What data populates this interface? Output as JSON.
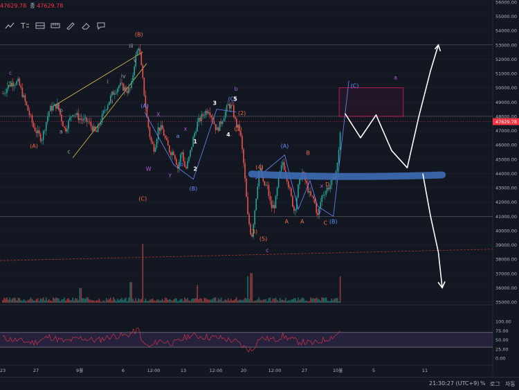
{
  "readout": {
    "price": "47629.78",
    "prefix": "종",
    "close": "47629.78"
  },
  "toolbar": {
    "icons": [
      "trend-line-icon",
      "text-tool-icon",
      "pattern-icon",
      "measure-icon",
      "brush-icon",
      "eraser-icon",
      "note-icon"
    ]
  },
  "chart_data": {
    "type": "candlestick",
    "price_axis": {
      "ticks": [
        "56000.00",
        "55000.00",
        "54000.00",
        "53000.00",
        "52000.00",
        "51000.00",
        "50000.00",
        "49000.00",
        "48000.00",
        "47000.00",
        "46000.00",
        "45000.00",
        "44000.00",
        "43000.00",
        "42000.00",
        "41000.00",
        "40000.00",
        "39000.00",
        "38000.00",
        "37000.00",
        "36000.00",
        "35000.00"
      ],
      "ylim": [
        35000,
        56000
      ],
      "last_price_label": "47629.78",
      "last_price_color": "#f23645"
    },
    "rsi_axis": {
      "ticks": [
        "100.00",
        "75.00",
        "50.00",
        "25.00",
        "0.00"
      ],
      "ylim": [
        0,
        100
      ],
      "band": [
        30,
        70
      ]
    },
    "time_axis": {
      "ticks": [
        "23",
        "27",
        "9월",
        "6",
        "12:00",
        "13",
        "12:00",
        "20",
        "12:00",
        "27",
        "10월",
        "5",
        "11"
      ]
    },
    "price_path": [
      [
        0,
        49600
      ],
      [
        2,
        50300
      ],
      [
        4,
        50400
      ],
      [
        6,
        48800
      ],
      [
        8,
        47200
      ],
      [
        10,
        46400
      ],
      [
        12,
        48500
      ],
      [
        14,
        48800
      ],
      [
        16,
        47000
      ],
      [
        18,
        48300
      ],
      [
        20,
        47800
      ],
      [
        22,
        47600
      ],
      [
        24,
        46800
      ],
      [
        26,
        48300
      ],
      [
        28,
        49500
      ],
      [
        30,
        50200
      ],
      [
        32,
        49800
      ],
      [
        33,
        50000
      ],
      [
        34,
        52000
      ],
      [
        35,
        53000
      ],
      [
        36,
        50500
      ],
      [
        37,
        48000
      ],
      [
        38,
        46300
      ],
      [
        39,
        45700
      ],
      [
        40,
        47200
      ],
      [
        41,
        47100
      ],
      [
        42,
        46200
      ],
      [
        43,
        45500
      ],
      [
        44,
        45500
      ],
      [
        45,
        44400
      ],
      [
        46,
        45600
      ],
      [
        47,
        44200
      ],
      [
        48,
        45200
      ],
      [
        49,
        46500
      ],
      [
        50,
        47500
      ],
      [
        52,
        48300
      ],
      [
        53,
        48500
      ],
      [
        54,
        47800
      ],
      [
        55,
        47000
      ],
      [
        56,
        47500
      ],
      [
        58,
        48800
      ],
      [
        59,
        48600
      ],
      [
        60,
        47400
      ],
      [
        61,
        47000
      ],
      [
        62,
        44500
      ],
      [
        63,
        41000
      ],
      [
        64,
        39500
      ],
      [
        65,
        42000
      ],
      [
        66,
        44500
      ],
      [
        67,
        43200
      ],
      [
        68,
        43100
      ],
      [
        69,
        41600
      ],
      [
        70,
        41800
      ],
      [
        71,
        43700
      ],
      [
        72,
        44800
      ],
      [
        73,
        43800
      ],
      [
        74,
        42500
      ],
      [
        75,
        41300
      ],
      [
        76,
        43100
      ],
      [
        77,
        44100
      ],
      [
        78,
        43300
      ],
      [
        79,
        42400
      ],
      [
        80,
        42200
      ],
      [
        81,
        41000
      ],
      [
        82,
        42400
      ],
      [
        83,
        42800
      ],
      [
        84,
        43100
      ],
      [
        85,
        43500
      ],
      [
        86,
        44500
      ],
      [
        87,
        47630
      ]
    ],
    "volume_spikes": [
      [
        36,
        1.0
      ],
      [
        33,
        0.35
      ],
      [
        63,
        0.45
      ],
      [
        64,
        0.5
      ],
      [
        87,
        0.45
      ],
      [
        50,
        0.3
      ],
      [
        20,
        0.25
      ]
    ],
    "rsi_path": [
      [
        0,
        55
      ],
      [
        4,
        48
      ],
      [
        8,
        42
      ],
      [
        12,
        58
      ],
      [
        16,
        45
      ],
      [
        20,
        55
      ],
      [
        24,
        48
      ],
      [
        28,
        60
      ],
      [
        32,
        62
      ],
      [
        35,
        78
      ],
      [
        36,
        40
      ],
      [
        38,
        30
      ],
      [
        40,
        48
      ],
      [
        44,
        40
      ],
      [
        48,
        62
      ],
      [
        52,
        58
      ],
      [
        56,
        55
      ],
      [
        60,
        45
      ],
      [
        62,
        30
      ],
      [
        64,
        20
      ],
      [
        66,
        55
      ],
      [
        70,
        50
      ],
      [
        72,
        60
      ],
      [
        76,
        45
      ],
      [
        80,
        40
      ],
      [
        84,
        55
      ],
      [
        86,
        65
      ],
      [
        87,
        82
      ]
    ],
    "wave_labels": [
      {
        "text": "c",
        "color": "#b05ad6",
        "x": 2,
        "price": 50900
      },
      {
        "text": "(5)",
        "color": "#3bb273",
        "x": 2,
        "price": 50150
      },
      {
        "text": "(A)",
        "color": "#f36f45",
        "x": 8,
        "price": 45800
      },
      {
        "text": "b",
        "color": "#9aa0aa",
        "x": 15,
        "price": 48300
      },
      {
        "text": "a",
        "color": "#9aa0aa",
        "x": 15,
        "price": 46800
      },
      {
        "text": "c",
        "color": "#9aa0aa",
        "x": 17,
        "price": 45400
      },
      {
        "text": "(B)",
        "color": "#f36f45",
        "x": 35,
        "price": 53600
      },
      {
        "text": "iii",
        "color": "#9aa0aa",
        "x": 33,
        "price": 52800
      },
      {
        "text": "v",
        "color": "#9aa0aa",
        "x": 34,
        "price": 51800
      },
      {
        "text": "iv",
        "color": "#9aa0aa",
        "x": 31,
        "price": 50700
      },
      {
        "text": "ii",
        "color": "#9aa0aa",
        "x": 28,
        "price": 48900
      },
      {
        "text": "i",
        "color": "#9aa0aa",
        "x": 27,
        "price": 50300
      },
      {
        "text": "(A)",
        "color": "#6a8cff",
        "x": 36.5,
        "price": 48600
      },
      {
        "text": "X",
        "color": "#b05ad6",
        "x": 40,
        "price": 48000
      },
      {
        "text": "W",
        "color": "#b05ad6",
        "x": 37.5,
        "price": 44200
      },
      {
        "text": "(C)",
        "color": "#f36f45",
        "x": 36,
        "price": 42100
      },
      {
        "text": "a",
        "color": "#6a8cff",
        "x": 45,
        "price": 46500
      },
      {
        "text": "b",
        "color": "#6a8cff",
        "x": 46,
        "price": 44500
      },
      {
        "text": "Y",
        "color": "#b05ad6",
        "x": 43,
        "price": 43700
      },
      {
        "text": "x",
        "color": "#b05ad6",
        "x": 47,
        "price": 47000
      },
      {
        "text": "1",
        "color": "#ffffff",
        "x": 49.5,
        "price": 46100
      },
      {
        "text": "2",
        "color": "#ffffff",
        "x": 49.5,
        "price": 44200
      },
      {
        "text": "(B)",
        "color": "#6a8cff",
        "x": 49,
        "price": 42800
      },
      {
        "text": "3",
        "color": "#ffffff",
        "x": 54.5,
        "price": 48800
      },
      {
        "text": "4",
        "color": "#ffffff",
        "x": 58,
        "price": 46600
      },
      {
        "text": "b",
        "color": "#b05ad6",
        "x": 60,
        "price": 49800
      },
      {
        "text": "(C)",
        "color": "#6a8cff",
        "x": 59,
        "price": 49100
      },
      {
        "text": "5",
        "color": "#ffffff",
        "x": 59.8,
        "price": 49100
      },
      {
        "text": "(2)",
        "color": "#f36f45",
        "x": 61.5,
        "price": 48100
      },
      {
        "text": "(1)",
        "color": "#f36f45",
        "x": 60.5,
        "price": 47000
      },
      {
        "text": "(4)",
        "color": "#f36f45",
        "x": 66,
        "price": 44300
      },
      {
        "text": "(3)",
        "color": "#f36f45",
        "x": 64.5,
        "price": 39800
      },
      {
        "text": "(5)",
        "color": "#f36f45",
        "x": 67,
        "price": 39300
      },
      {
        "text": "c",
        "color": "#b05ad6",
        "x": 68,
        "price": 38500
      },
      {
        "text": "(A)",
        "color": "#6a8cff",
        "x": 72.5,
        "price": 45800
      },
      {
        "text": "B",
        "color": "#f36f45",
        "x": 78.5,
        "price": 45300
      },
      {
        "text": "A",
        "color": "#f36f45",
        "x": 73,
        "price": 40500
      },
      {
        "text": "A",
        "color": "#f36f45",
        "x": 77,
        "price": 40500
      },
      {
        "text": "C",
        "color": "#f36f45",
        "x": 83,
        "price": 40400
      },
      {
        "text": "D",
        "color": "#f36f45",
        "x": 83.5,
        "price": 43100
      },
      {
        "text": "x",
        "color": "#b05ad6",
        "x": 82,
        "price": 43000
      },
      {
        "text": "y",
        "color": "#b05ad6",
        "x": 81.5,
        "price": 41200
      },
      {
        "text": "(B)",
        "color": "#6a8cff",
        "x": 85,
        "price": 40500
      },
      {
        "text": "(C)",
        "color": "#6a8cff",
        "x": 90.5,
        "price": 50000
      },
      {
        "text": "a",
        "color": "#b05ad6",
        "x": 101,
        "price": 50600
      }
    ],
    "support_band_price": 43900,
    "target_box": {
      "price_top": 50000,
      "price_bottom": 48000,
      "x_start": 86.5,
      "x_end": 103
    },
    "scenario_up": [
      [
        88,
        48200
      ],
      [
        92,
        46500
      ],
      [
        96,
        48100
      ],
      [
        100,
        45600
      ],
      [
        104,
        44400
      ],
      [
        107,
        48000
      ],
      [
        110,
        51200
      ],
      [
        112,
        53000
      ]
    ],
    "scenario_down": [
      [
        108,
        44000
      ],
      [
        110,
        41000
      ],
      [
        112,
        38500
      ],
      [
        113,
        36000
      ]
    ]
  },
  "status": {
    "time": "21:30:27 (UTC+9)",
    "percent": "%",
    "log": "로그",
    "auto": "자동"
  }
}
